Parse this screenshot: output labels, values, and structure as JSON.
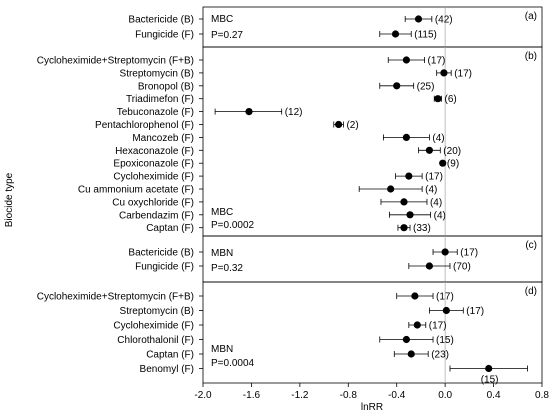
{
  "chart_data": {
    "type": "forest",
    "xlabel": "lnRR",
    "ylabel": "Biocide type",
    "xlim": [
      -2.0,
      0.8
    ],
    "x_ticks": [
      "-2.0",
      "-1.6",
      "-1.2",
      "-0.8",
      "-0.4",
      "0.0",
      "0.4",
      "0.8"
    ],
    "reference_line": 0,
    "panels": [
      {
        "tag": "(a)",
        "label": "MBC",
        "p_value": "P=0.27",
        "rows": [
          {
            "name": "Bactericide (B)",
            "mean": -0.22,
            "lo": -0.33,
            "hi": -0.11,
            "n": "(42)"
          },
          {
            "name": "Fungicide (F)",
            "mean": -0.41,
            "lo": -0.54,
            "hi": -0.28,
            "n": "(115)"
          }
        ]
      },
      {
        "tag": "(b)",
        "label": "MBC",
        "p_value": "P=0.0002",
        "rows": [
          {
            "name": "Cycloheximide+Streptomycin (F+B)",
            "mean": -0.32,
            "lo": -0.47,
            "hi": -0.17,
            "n": "(17)"
          },
          {
            "name": "Streptomycin (B)",
            "mean": -0.01,
            "lo": -0.07,
            "hi": 0.05,
            "n": "(17)"
          },
          {
            "name": "Bronopol (B)",
            "mean": -0.4,
            "lo": -0.54,
            "hi": -0.26,
            "n": "(25)"
          },
          {
            "name": "Triadimefon (F)",
            "mean": -0.06,
            "lo": -0.09,
            "hi": -0.03,
            "n": "(6)"
          },
          {
            "name": "Tebuconazole (F)",
            "mean": -1.62,
            "lo": -1.9,
            "hi": -1.35,
            "n": "(12)"
          },
          {
            "name": "Pentachlorophenol (F)",
            "mean": -0.88,
            "lo": -0.92,
            "hi": -0.84,
            "n": "(2)"
          },
          {
            "name": "Mancozeb (F)",
            "mean": -0.32,
            "lo": -0.51,
            "hi": -0.13,
            "n": "(4)"
          },
          {
            "name": "Hexaconazole (F)",
            "mean": -0.13,
            "lo": -0.22,
            "hi": -0.04,
            "n": "(20)"
          },
          {
            "name": "Epoxiconazole (F)",
            "mean": -0.02,
            "lo": -0.03,
            "hi": -0.01,
            "n": "(9)"
          },
          {
            "name": "Cycloheximide (F)",
            "mean": -0.3,
            "lo": -0.41,
            "hi": -0.19,
            "n": "(17)"
          },
          {
            "name": "Cu ammonium acetate (F)",
            "mean": -0.45,
            "lo": -0.71,
            "hi": -0.19,
            "n": "(4)"
          },
          {
            "name": "Cu oxychloride (F)",
            "mean": -0.34,
            "lo": -0.53,
            "hi": -0.15,
            "n": "(4)"
          },
          {
            "name": "Carbendazim (F)",
            "mean": -0.29,
            "lo": -0.46,
            "hi": -0.12,
            "n": "(4)"
          },
          {
            "name": "Captan (F)",
            "mean": -0.34,
            "lo": -0.39,
            "hi": -0.29,
            "n": "(33)"
          }
        ]
      },
      {
        "tag": "(c)",
        "label": "MBN",
        "p_value": "P=0.32",
        "rows": [
          {
            "name": "Bactericide (B)",
            "mean": 0.0,
            "lo": -0.1,
            "hi": 0.1,
            "n": "(17)"
          },
          {
            "name": "Fungicide (F)",
            "mean": -0.13,
            "lo": -0.3,
            "hi": 0.04,
            "n": "(70)"
          }
        ]
      },
      {
        "tag": "(d)",
        "label": "MBN",
        "p_value": "P=0.0004",
        "rows": [
          {
            "name": "Cycloheximide+Streptomycin (F+B)",
            "mean": -0.25,
            "lo": -0.4,
            "hi": -0.1,
            "n": "(17)"
          },
          {
            "name": "Streptomycin (B)",
            "mean": 0.01,
            "lo": -0.13,
            "hi": 0.15,
            "n": "(17)"
          },
          {
            "name": "Cycloheximide (F)",
            "mean": -0.23,
            "lo": -0.3,
            "hi": -0.16,
            "n": "(17)"
          },
          {
            "name": "Chlorothalonil (F)",
            "mean": -0.32,
            "lo": -0.54,
            "hi": -0.1,
            "n": "(15)"
          },
          {
            "name": "Captan (F)",
            "mean": -0.28,
            "lo": -0.42,
            "hi": -0.14,
            "n": "(23)"
          },
          {
            "name": "Benomyl (F)",
            "mean": 0.36,
            "lo": 0.04,
            "hi": 0.68,
            "n": "(15)"
          }
        ]
      }
    ]
  }
}
